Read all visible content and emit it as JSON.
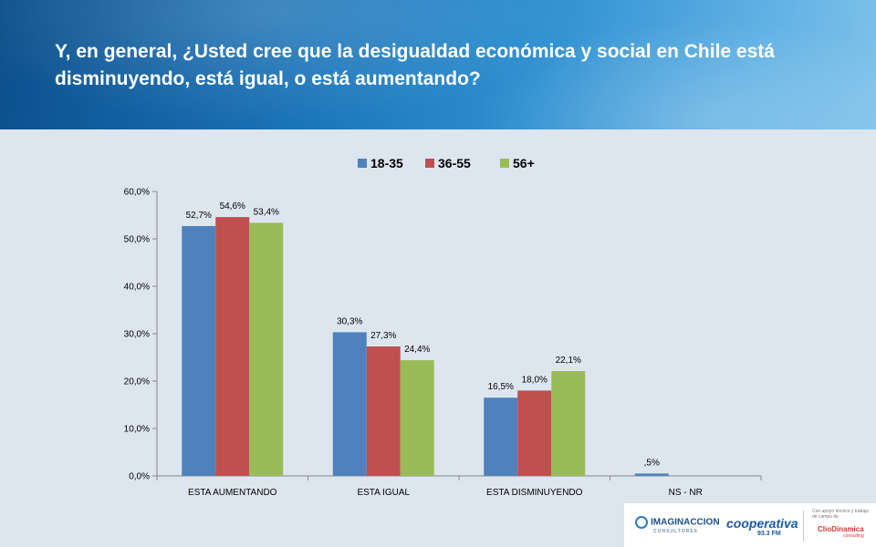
{
  "header": {
    "title": "Y, en general, ¿Usted cree que la desigualdad económica y social en Chile está disminuyendo, está igual, o está aumentando?"
  },
  "chart_data": {
    "type": "bar",
    "title": "",
    "xlabel": "",
    "ylabel": "",
    "ylim": [
      0,
      60
    ],
    "yticks": [
      "0,0%",
      "10,0%",
      "20,0%",
      "30,0%",
      "40,0%",
      "50,0%",
      "60,0%"
    ],
    "grid": false,
    "legend_position": "top",
    "categories": [
      "ESTA  AUMENTANDO",
      "ESTA  IGUAL",
      "ESTA  DISMINUYENDO",
      "NS - NR"
    ],
    "series": [
      {
        "name": "18-35",
        "color": "#4f81bd",
        "values": [
          52.7,
          30.3,
          16.5,
          0.5
        ],
        "labels": [
          "52,7%",
          "30,3%",
          "16,5%",
          ",5%"
        ]
      },
      {
        "name": "36-55",
        "color": "#c0504d",
        "values": [
          54.6,
          27.3,
          18.0,
          null
        ],
        "labels": [
          "54,6%",
          "27,3%",
          "18,0%",
          ""
        ]
      },
      {
        "name": "56+",
        "color": "#9bbb59",
        "values": [
          53.4,
          24.4,
          22.1,
          null
        ],
        "labels": [
          "53,4%",
          "24,4%",
          "22,1%",
          ""
        ]
      }
    ]
  },
  "logos": {
    "imaginaccion": "IMAGINACCION",
    "imaginaccion_sub": "CONSULTORES",
    "cooperativa": "cooperativa",
    "cooperativa_fm": "93.3 FM",
    "clio_note": "Con apoyo técnico y trabajo de campo de",
    "clio": "ClioDinamica",
    "clio_sub": "consulting"
  }
}
